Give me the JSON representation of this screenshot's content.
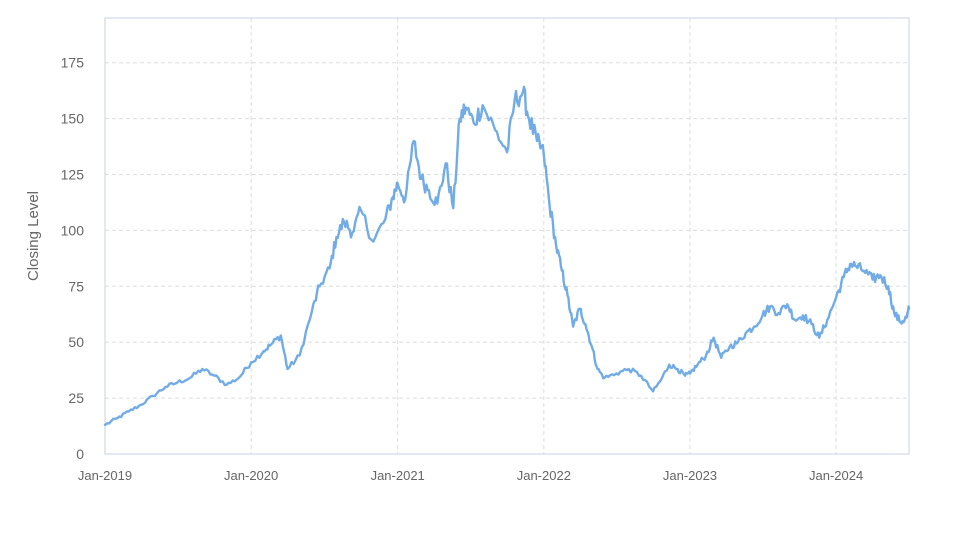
{
  "chart_data": {
    "type": "line",
    "title": "",
    "xlabel": "",
    "ylabel": "Closing Level",
    "x_ticks": [
      "Jan-2019",
      "Jan-2020",
      "Jan-2021",
      "Jan-2022",
      "Jan-2023",
      "Jan-2024"
    ],
    "y_ticks": [
      0,
      25,
      50,
      75,
      100,
      125,
      150,
      175
    ],
    "xlim": [
      "2019-01-01",
      "2024-07-01"
    ],
    "ylim": [
      0,
      195
    ],
    "grid": true,
    "series_color": "#72ace6",
    "series": [
      {
        "x": [
          "2019-01-01",
          "2019-02-01",
          "2019-03-01",
          "2019-04-01",
          "2019-05-01",
          "2019-06-01",
          "2019-07-01",
          "2019-08-01",
          "2019-09-01",
          "2019-10-01",
          "2019-11-01",
          "2019-12-01",
          "2020-01-01",
          "2020-02-01",
          "2020-02-20",
          "2020-03-15",
          "2020-04-01",
          "2020-05-01",
          "2020-06-01",
          "2020-06-20",
          "2020-07-15",
          "2020-08-01",
          "2020-08-20",
          "2020-09-10",
          "2020-10-01",
          "2020-11-01",
          "2020-12-01",
          "2020-12-20",
          "2021-01-01",
          "2021-01-20",
          "2021-02-10",
          "2021-03-01",
          "2021-03-20",
          "2021-04-10",
          "2021-05-01",
          "2021-05-20",
          "2021-06-05",
          "2021-06-20",
          "2021-07-10",
          "2021-08-01",
          "2021-09-01",
          "2021-10-01",
          "2021-10-20",
          "2021-11-10",
          "2021-11-25",
          "2021-12-15",
          "2022-01-01",
          "2022-01-15",
          "2022-02-01",
          "2022-02-15",
          "2022-03-01",
          "2022-03-15",
          "2022-04-01",
          "2022-04-15",
          "2022-05-01",
          "2022-05-15",
          "2022-06-01",
          "2022-07-01",
          "2022-08-01",
          "2022-09-01",
          "2022-10-01",
          "2022-10-20",
          "2022-11-10",
          "2022-12-01",
          "2022-12-20",
          "2023-01-01",
          "2023-01-20",
          "2023-02-10",
          "2023-03-01",
          "2023-03-20",
          "2023-04-10",
          "2023-05-01",
          "2023-05-20",
          "2023-06-10",
          "2023-07-01",
          "2023-07-20",
          "2023-08-10",
          "2023-09-01",
          "2023-09-20",
          "2023-10-10",
          "2023-11-01",
          "2023-11-20",
          "2023-12-10",
          "2024-01-01",
          "2024-01-20",
          "2024-02-05",
          "2024-02-20",
          "2024-03-10",
          "2024-04-01",
          "2024-04-20",
          "2024-05-10",
          "2024-05-25",
          "2024-06-10",
          "2024-06-25",
          "2024-07-01"
        ],
        "y": [
          13,
          16,
          19,
          22,
          26,
          30,
          32,
          34,
          38,
          35,
          31,
          34,
          41,
          46,
          49,
          53,
          38,
          44,
          64,
          75,
          83,
          97,
          104,
          99,
          109,
          95,
          105,
          115,
          121,
          114,
          140,
          123,
          118,
          112,
          130,
          110,
          150,
          155,
          148,
          156,
          145,
          135,
          158,
          162,
          150,
          140,
          134,
          112,
          93,
          82,
          71,
          57,
          65,
          58,
          48,
          38,
          34,
          36,
          38,
          35,
          28,
          33,
          40,
          38,
          35,
          36,
          40,
          44,
          52,
          43,
          48,
          50,
          54,
          57,
          62,
          66,
          63,
          67,
          60,
          62,
          58,
          52,
          60,
          70,
          79,
          85,
          84,
          82,
          78,
          80,
          75,
          63,
          59,
          61,
          65
        ]
      }
    ]
  }
}
